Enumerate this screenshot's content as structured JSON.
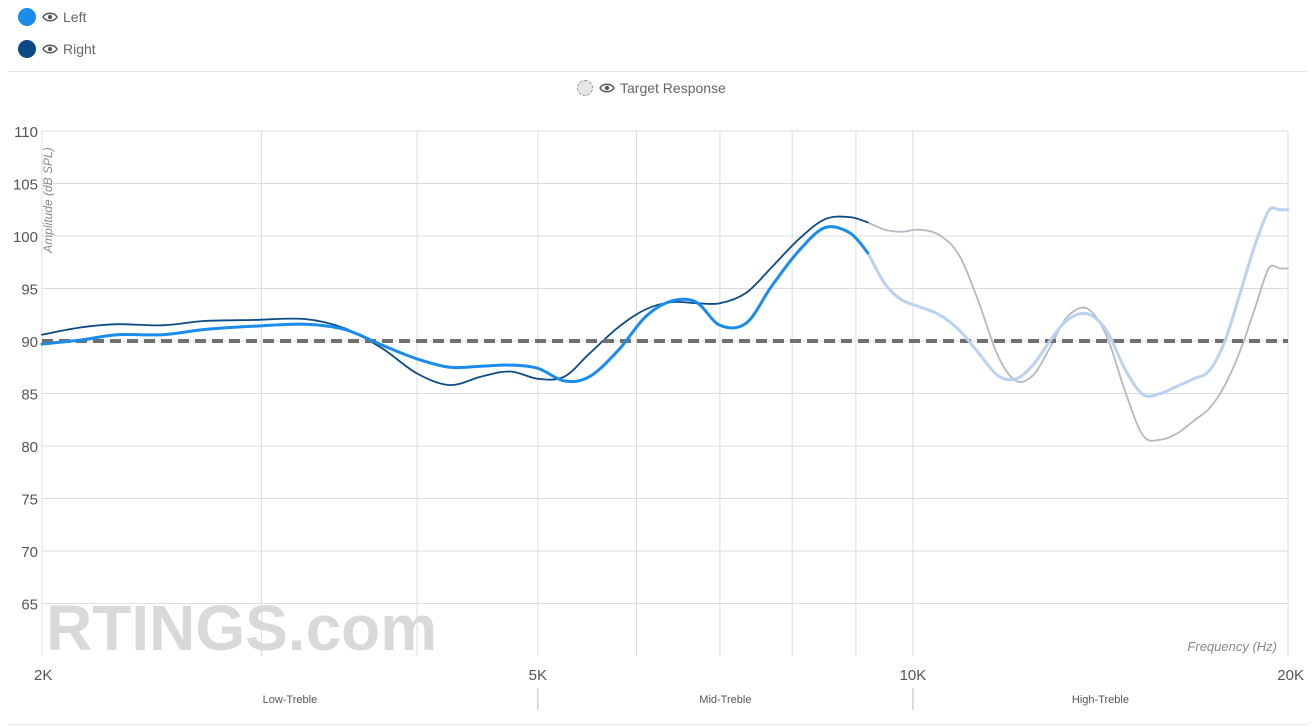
{
  "legend": {
    "left": {
      "label": "Left",
      "color": "#1a8ceb"
    },
    "right": {
      "label": "Right",
      "color": "#0b4a86"
    },
    "target": {
      "label": "Target Response"
    }
  },
  "watermark": "RTINGS.com",
  "chart_data": {
    "type": "line",
    "title": "",
    "xlabel": "Frequency (Hz)",
    "ylabel": "Amplitude (dB SPL)",
    "x_scale": "log",
    "xlim": [
      2000,
      20000
    ],
    "ylim": [
      60,
      110
    ],
    "grid": true,
    "y_ticks": [
      65,
      70,
      75,
      80,
      85,
      90,
      95,
      100,
      105,
      110
    ],
    "x_tick_labels": [
      {
        "value": 2000,
        "label": "2K"
      },
      {
        "value": 5000,
        "label": "5K"
      },
      {
        "value": 10000,
        "label": "10K"
      },
      {
        "value": 20000,
        "label": "20K"
      }
    ],
    "bands": [
      {
        "label": "Low-Treble",
        "from": 2000,
        "to": 5000
      },
      {
        "label": "Mid-Treble",
        "from": 5000,
        "to": 10000
      },
      {
        "label": "High-Treble",
        "from": 10000,
        "to": 20000
      }
    ],
    "faded_from": 9200,
    "target": {
      "name": "Target Response",
      "value": 90
    },
    "series": [
      {
        "name": "Left",
        "color": "#1a8ceb",
        "faded_color": "#b9d2f2",
        "x": [
          2000,
          2150,
          2300,
          2500,
          2700,
          2950,
          3250,
          3500,
          3750,
          4000,
          4250,
          4500,
          4750,
          5000,
          5250,
          5500,
          5800,
          6100,
          6400,
          6700,
          7000,
          7350,
          7700,
          8100,
          8500,
          8900,
          9200,
          9500,
          9800,
          10100,
          10500,
          10900,
          11300,
          11700,
          12100,
          12500,
          12900,
          13300,
          13800,
          14300,
          14800,
          15300,
          15800,
          16300,
          16800,
          17300,
          17800,
          18300,
          18800,
          19300,
          19700,
          20000
        ],
        "y": [
          89.7,
          90.1,
          90.6,
          90.6,
          91.1,
          91.4,
          91.6,
          91.1,
          89.6,
          88.3,
          87.5,
          87.6,
          87.7,
          87.4,
          86.2,
          86.6,
          89.1,
          92.3,
          93.8,
          93.7,
          91.5,
          91.7,
          95.2,
          98.6,
          100.8,
          100.3,
          98.4,
          95.4,
          93.9,
          93.3,
          92.5,
          91.0,
          88.8,
          86.7,
          86.4,
          87.8,
          90.1,
          92.0,
          92.6,
          91.0,
          87.3,
          84.9,
          85.0,
          85.7,
          86.4,
          87.2,
          90.0,
          94.5,
          99.0,
          102.4,
          102.5,
          102.5
        ]
      },
      {
        "name": "Right",
        "color": "#0b4a86",
        "faded_color": "#b5b8c0",
        "x": [
          2000,
          2150,
          2300,
          2500,
          2700,
          2950,
          3250,
          3500,
          3750,
          4000,
          4250,
          4500,
          4750,
          5000,
          5250,
          5500,
          5800,
          6100,
          6400,
          6700,
          7000,
          7350,
          7700,
          8100,
          8500,
          8900,
          9200,
          9500,
          9800,
          10100,
          10500,
          10900,
          11300,
          11700,
          12100,
          12500,
          12900,
          13300,
          13800,
          14300,
          14800,
          15300,
          15800,
          16300,
          16800,
          17300,
          17800,
          18300,
          18800,
          19300,
          19700,
          20000
        ],
        "y": [
          90.6,
          91.3,
          91.6,
          91.5,
          91.9,
          92.0,
          92.1,
          91.2,
          89.3,
          86.9,
          85.8,
          86.6,
          87.1,
          86.4,
          86.6,
          88.8,
          91.3,
          93.0,
          93.7,
          93.6,
          93.6,
          94.6,
          97.0,
          99.7,
          101.6,
          101.8,
          101.3,
          100.6,
          100.4,
          100.6,
          100.1,
          98.1,
          93.6,
          88.6,
          86.2,
          86.8,
          89.5,
          92.3,
          93.1,
          90.5,
          85.2,
          81.0,
          80.6,
          81.2,
          82.4,
          83.6,
          85.8,
          89.0,
          93.0,
          96.9,
          96.9,
          96.9
        ]
      }
    ]
  }
}
